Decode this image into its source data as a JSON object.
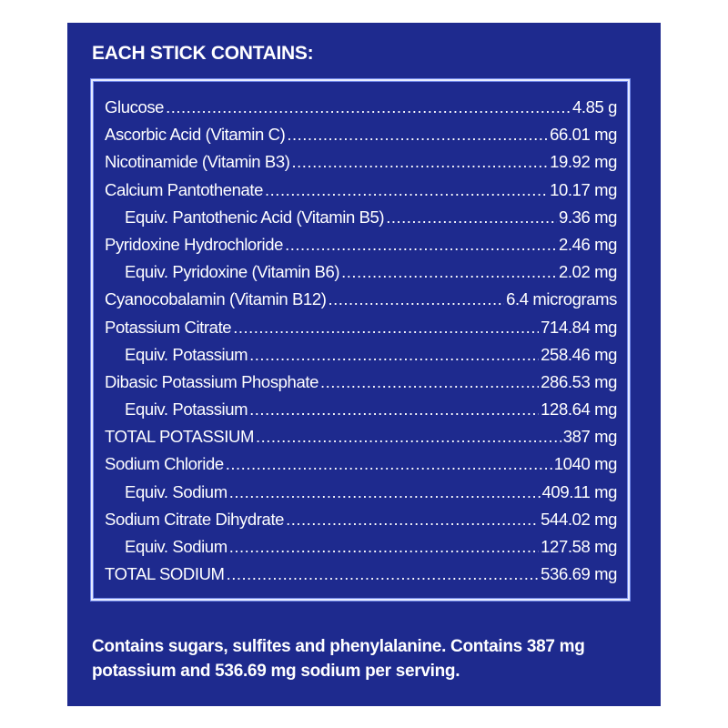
{
  "heading": "EACH STICK CONTAINS:",
  "items": [
    {
      "name": "Glucose",
      "amount": "4.85 g",
      "sub": false
    },
    {
      "name": "Ascorbic Acid (Vitamin C)",
      "amount": "66.01 mg",
      "sub": false
    },
    {
      "name": "Nicotinamide (Vitamin B3)",
      "amount": "19.92 mg",
      "sub": false
    },
    {
      "name": "Calcium Pantothenate",
      "amount": "10.17 mg",
      "sub": false
    },
    {
      "name": "Equiv. Pantothenic Acid (Vitamin B5)",
      "amount": "9.36 mg",
      "sub": true
    },
    {
      "name": "Pyridoxine Hydrochloride",
      "amount": "2.46 mg",
      "sub": false
    },
    {
      "name": "Equiv. Pyridoxine (Vitamin B6)",
      "amount": "2.02 mg",
      "sub": true
    },
    {
      "name": "Cyanocobalamin (Vitamin B12)",
      "amount": "6.4 micrograms",
      "sub": false
    },
    {
      "name": "Potassium Citrate",
      "amount": "714.84 mg",
      "sub": false
    },
    {
      "name": "Equiv. Potassium",
      "amount": "258.46 mg",
      "sub": true
    },
    {
      "name": "Dibasic Potassium Phosphate",
      "amount": "286.53 mg",
      "sub": false
    },
    {
      "name": "Equiv. Potassium",
      "amount": "128.64 mg",
      "sub": true
    },
    {
      "name": "TOTAL POTASSIUM",
      "amount": "387 mg",
      "sub": false
    },
    {
      "name": "Sodium Chloride",
      "amount": "1040 mg",
      "sub": false
    },
    {
      "name": "Equiv. Sodium",
      "amount": "409.11 mg",
      "sub": true
    },
    {
      "name": "Sodium Citrate Dihydrate",
      "amount": "544.02 mg",
      "sub": false
    },
    {
      "name": "Equiv. Sodium",
      "amount": "127.58 mg",
      "sub": true
    },
    {
      "name": "TOTAL SODIUM",
      "amount": "536.69 mg",
      "sub": false
    }
  ],
  "note": "Contains sugars, sulfites and phenylalanine. Contains 387 mg potassium and 536.69 mg sodium per serving.",
  "colors": {
    "panel": "#1e2a8e",
    "text": "#ffffff",
    "border": "#e6ebff"
  }
}
